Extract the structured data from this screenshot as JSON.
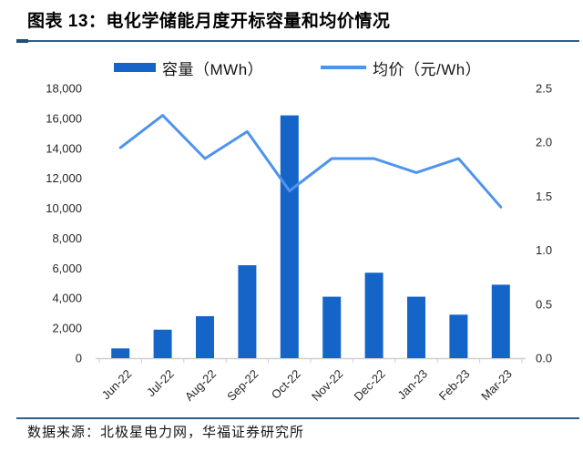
{
  "figure": {
    "title": "图表 13：电化学储能月度开标容量和均价情况",
    "source": "数据来源：北极星电力网，华福证券研究所"
  },
  "legend": {
    "items": [
      {
        "label": "容量（MWh）",
        "type": "bar"
      },
      {
        "label": "均价（元/Wh）",
        "type": "line"
      }
    ]
  },
  "colors": {
    "bar": "#1565c8",
    "line": "#4e93ee",
    "rule": "#2e5e8e",
    "rule_accent": "#1f4e79",
    "axis_line": "#cfcfcf",
    "tick_text": "#262626"
  },
  "chart_data": {
    "type": "bar",
    "subtype": "bar-line-combo",
    "categories": [
      "Jun-22",
      "Jul-22",
      "Aug-22",
      "Sep-22",
      "Oct-22",
      "Nov-22",
      "Dec-22",
      "Jan-23",
      "Feb-23",
      "Mar-23"
    ],
    "series": [
      {
        "name": "容量（MWh）",
        "type": "bar",
        "axis": "left",
        "values": [
          650,
          1900,
          2800,
          6200,
          16200,
          4100,
          5700,
          4100,
          2900,
          4900
        ]
      },
      {
        "name": "均价（元/Wh）",
        "type": "line",
        "axis": "right",
        "values": [
          1.95,
          2.25,
          1.85,
          2.1,
          1.55,
          1.85,
          1.85,
          1.72,
          1.85,
          1.4
        ]
      }
    ],
    "left_axis": {
      "min": 0,
      "max": 18000,
      "step": 2000,
      "tick_labels": [
        "0",
        "2,000",
        "4,000",
        "6,000",
        "8,000",
        "10,000",
        "12,000",
        "14,000",
        "16,000",
        "18,000"
      ]
    },
    "right_axis": {
      "min": 0,
      "max": 2.5,
      "step": 0.5,
      "tick_labels": [
        "0.0",
        "0.5",
        "1.0",
        "1.5",
        "2.0",
        "2.5"
      ]
    },
    "grid": false,
    "legend_position": "top"
  }
}
